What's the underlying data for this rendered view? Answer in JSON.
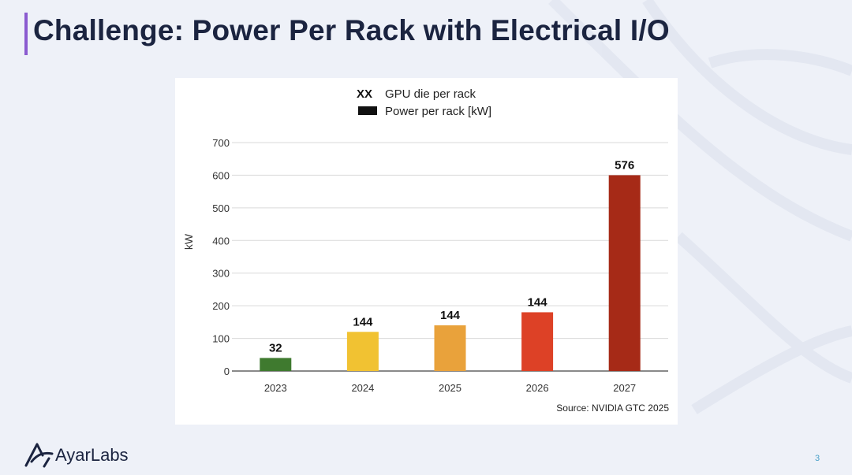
{
  "slide": {
    "title": "Challenge: Power Per Rack with Electrical I/O",
    "page_number": "3",
    "brand": {
      "name_a": "Ayar",
      "name_b": "Labs",
      "accent": "#8a5bd0",
      "logo_color": "#1b2440"
    }
  },
  "chart_data": {
    "type": "bar",
    "legend": [
      {
        "marker": "XX",
        "label": "GPU die per rack"
      },
      {
        "marker": "swatch",
        "label": "Power per rack [kW]"
      }
    ],
    "legend_placement": "top-center",
    "ylabel": "kW",
    "ylim": [
      0,
      700
    ],
    "yticks": [
      0,
      100,
      200,
      300,
      400,
      500,
      600,
      700
    ],
    "grid": true,
    "categories": [
      "2023",
      "2024",
      "2025",
      "2026",
      "2027"
    ],
    "series": [
      {
        "name": "Power per rack [kW]",
        "values": [
          40,
          120,
          140,
          180,
          600
        ],
        "colors": [
          "#3f7a2f",
          "#f1c232",
          "#e9a23b",
          "#dd4126",
          "#a62a17"
        ]
      }
    ],
    "bar_labels": [
      "32",
      "144",
      "144",
      "144",
      "576"
    ],
    "source": "Source: NVIDIA GTC 2025"
  }
}
